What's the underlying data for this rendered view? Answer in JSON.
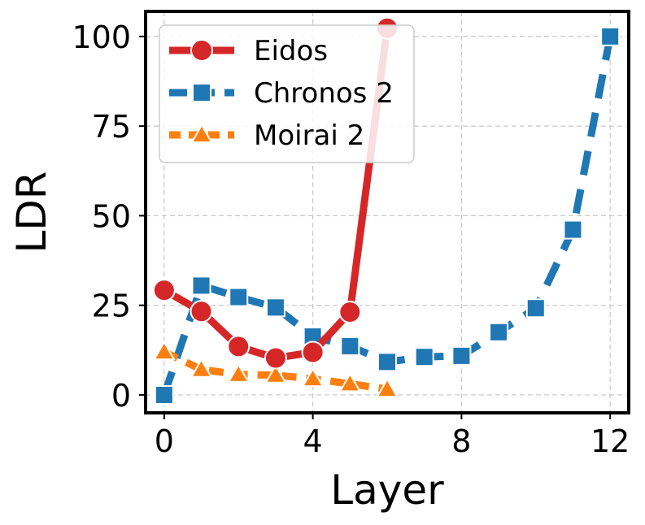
{
  "chart_data": {
    "type": "line",
    "xlabel": "Layer",
    "ylabel": "LDR",
    "xlim": [
      -0.5,
      12.5
    ],
    "ylim": [
      -5,
      107
    ],
    "xticks": [
      "0",
      "4",
      "8",
      "12"
    ],
    "yticks": [
      "0",
      "25",
      "50",
      "75",
      "100"
    ],
    "grid": true,
    "legend_position": "top-left",
    "series": [
      {
        "name": "Eidos",
        "color": "#d62728",
        "marker": "circle",
        "x": [
          0,
          1,
          2,
          3,
          4,
          5,
          6
        ],
        "y": [
          29.2,
          23.3,
          13.5,
          10.3,
          11.9,
          23.1,
          102.3
        ]
      },
      {
        "name": "Chronos 2",
        "color": "#1f77b4",
        "marker": "square",
        "x": [
          0,
          1,
          2,
          3,
          4,
          5,
          6,
          7,
          8,
          9,
          10,
          11,
          12
        ],
        "y": [
          0,
          30.5,
          27.3,
          24.4,
          16.3,
          13.6,
          9.2,
          10.6,
          10.9,
          17.5,
          24.2,
          46.1,
          100
        ]
      },
      {
        "name": "Moirai 2",
        "color": "#ff7f0e",
        "marker": "triangle",
        "x": [
          0,
          1,
          2,
          3,
          4,
          5,
          6
        ],
        "y": [
          12.0,
          7.1,
          5.7,
          5.5,
          4.5,
          3.1,
          1.6
        ]
      }
    ]
  }
}
